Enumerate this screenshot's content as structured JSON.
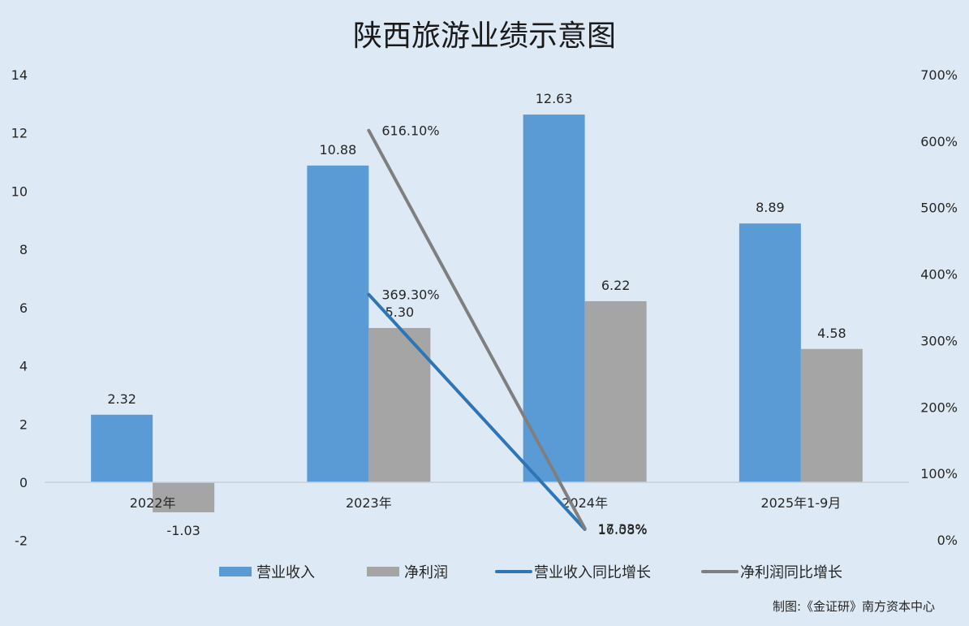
{
  "chart_data": {
    "type": "bar",
    "title": "陕西旅游业绩示意图",
    "categories": [
      "2022年",
      "2023年",
      "2024年",
      "2025年1-9月"
    ],
    "series": [
      {
        "name": "营业收入",
        "kind": "bar",
        "axis": "left",
        "color": "#5b9bd5",
        "values": [
          2.32,
          10.88,
          12.63,
          8.89
        ],
        "labels": [
          "2.32",
          "10.88",
          "12.63",
          "8.89"
        ]
      },
      {
        "name": "净利润",
        "kind": "bar",
        "axis": "left",
        "color": "#a5a5a5",
        "values": [
          -1.03,
          5.3,
          6.22,
          4.58
        ],
        "labels": [
          "-1.03",
          "5.30",
          "6.22",
          "4.58"
        ]
      },
      {
        "name": "营业收入同比增长",
        "kind": "line",
        "axis": "right",
        "color": "#2e75b6",
        "values": [
          null,
          369.3,
          16.08,
          null
        ],
        "labels": [
          null,
          "369.30%",
          "16.08%",
          null
        ]
      },
      {
        "name": "净利润同比增长",
        "kind": "line",
        "axis": "right",
        "color": "#7f7f7f",
        "values": [
          null,
          616.1,
          17.33,
          null
        ],
        "labels": [
          null,
          "616.10%",
          "17.33%",
          null
        ]
      }
    ],
    "y_left": {
      "min": -2,
      "max": 14,
      "ticks": [
        "-2",
        "0",
        "2",
        "4",
        "6",
        "8",
        "10",
        "12",
        "14"
      ]
    },
    "y_right": {
      "min": 0,
      "max": 700,
      "ticks": [
        "0%",
        "100%",
        "200%",
        "300%",
        "400%",
        "500%",
        "600%",
        "700%"
      ]
    },
    "grid": false,
    "legend_position": "bottom",
    "source_note": "制图:《金证研》南方资本中心"
  }
}
